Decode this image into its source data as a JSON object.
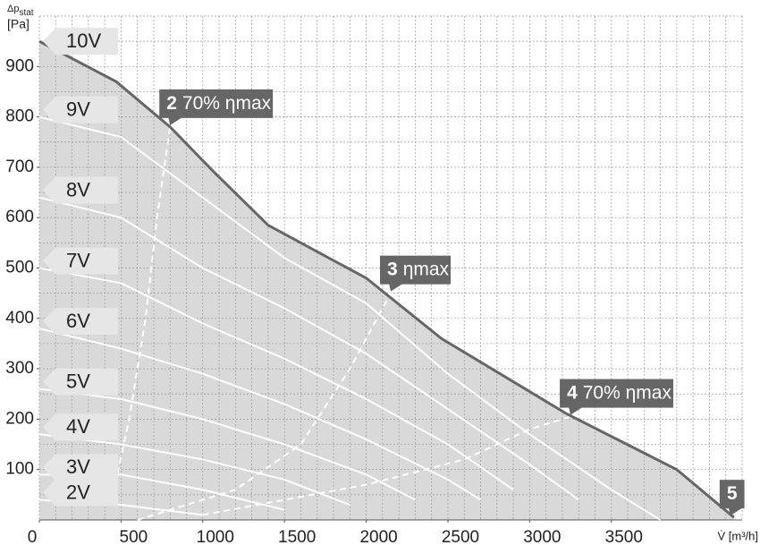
{
  "chart_data": {
    "type": "line",
    "ylabel": "Δp",
    "ylabel_sub": "stat",
    "ylabel_unit": "[Pa]",
    "xlabel": "V̇ [m³/h]",
    "xlim": [
      0,
      4300
    ],
    "ylim": [
      0,
      1000
    ],
    "xticks": [
      0,
      500,
      1000,
      1500,
      2000,
      2500,
      3000,
      3500
    ],
    "yticks": [
      100,
      200,
      300,
      400,
      500,
      600,
      700,
      800,
      900
    ],
    "grid": true,
    "series": [
      {
        "name": "10V",
        "color": "#666666",
        "x": [
          0,
          470,
          800,
          1070,
          1400,
          2000,
          2460,
          3230,
          3900,
          4250
        ],
        "values": [
          950,
          870,
          780,
          690,
          585,
          480,
          360,
          210,
          100,
          5
        ]
      },
      {
        "name": "9V",
        "color": "#ffffff",
        "x": [
          0,
          500,
          1000,
          1500,
          2000,
          2500,
          3000,
          3500,
          3800
        ],
        "values": [
          800,
          760,
          640,
          520,
          430,
          290,
          170,
          60,
          0
        ]
      },
      {
        "name": "8V",
        "color": "#ffffff",
        "x": [
          0,
          500,
          1000,
          1500,
          2000,
          2500,
          3000,
          3300
        ],
        "values": [
          640,
          600,
          500,
          420,
          330,
          220,
          110,
          40
        ]
      },
      {
        "name": "7V",
        "color": "#ffffff",
        "x": [
          0,
          500,
          1000,
          1500,
          2000,
          2500,
          2900
        ],
        "values": [
          500,
          470,
          390,
          320,
          240,
          150,
          60
        ]
      },
      {
        "name": "6V",
        "color": "#ffffff",
        "x": [
          0,
          500,
          1000,
          1500,
          2000,
          2500,
          2700
        ],
        "values": [
          380,
          340,
          290,
          230,
          160,
          80,
          40
        ]
      },
      {
        "name": "5V",
        "color": "#ffffff",
        "x": [
          0,
          500,
          1000,
          1500,
          2000,
          2300
        ],
        "values": [
          260,
          240,
          200,
          150,
          90,
          40
        ]
      },
      {
        "name": "4V",
        "color": "#ffffff",
        "x": [
          0,
          500,
          1000,
          1500,
          1900
        ],
        "values": [
          170,
          150,
          120,
          80,
          30
        ]
      },
      {
        "name": "3V",
        "color": "#ffffff",
        "x": [
          0,
          500,
          1000,
          1500
        ],
        "values": [
          90,
          90,
          60,
          20
        ]
      },
      {
        "name": "2V",
        "color": "#ffffff",
        "x": [
          0,
          500,
          1000
        ],
        "values": [
          40,
          30,
          10
        ]
      }
    ],
    "efficiency_lines": [
      {
        "number": "2",
        "label": "70% ηmax",
        "x": [
          450,
          550,
          650,
          720,
          800
        ],
        "values": [
          50,
          200,
          400,
          600,
          780
        ]
      },
      {
        "number": "3",
        "label": "ηmax",
        "x": [
          600,
          1200,
          1600,
          1900,
          2150
        ],
        "values": [
          0,
          60,
          150,
          300,
          450
        ]
      },
      {
        "number": "4",
        "label": "70% ηmax",
        "x": [
          1000,
          2000,
          2600,
          3000,
          3250
        ],
        "values": [
          10,
          70,
          120,
          180,
          205
        ]
      }
    ],
    "end_point": {
      "number": "5"
    }
  }
}
